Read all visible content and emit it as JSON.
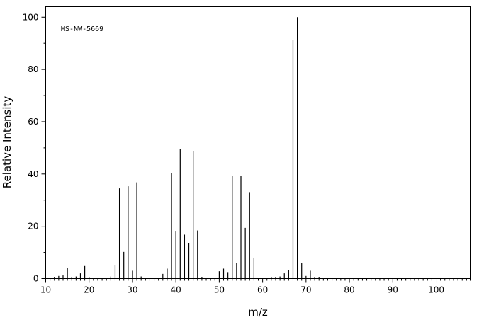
{
  "chart_data": {
    "type": "bar",
    "title": "",
    "annotation": "MS-NW-5669",
    "xlabel": "m/z",
    "ylabel": "Relative Intensity",
    "xlim": [
      10,
      108
    ],
    "ylim": [
      0,
      104
    ],
    "x_major_ticks": [
      10,
      20,
      30,
      40,
      50,
      60,
      70,
      80,
      90,
      100
    ],
    "y_major_ticks": [
      0,
      20,
      40,
      60,
      80,
      100
    ],
    "x_minor_step": 1,
    "y_minor_step": 10,
    "grid": false,
    "peaks": {
      "mz": [
        12,
        13,
        14,
        15,
        16,
        17,
        18,
        19,
        20,
        25,
        26,
        27,
        28,
        29,
        30,
        31,
        32,
        37,
        38,
        39,
        40,
        41,
        42,
        43,
        44,
        45,
        46,
        50,
        51,
        52,
        53,
        54,
        55,
        56,
        57,
        58,
        62,
        63,
        64,
        65,
        66,
        67,
        68,
        69,
        70,
        71,
        72,
        73
      ],
      "intensity": [
        0.6,
        1.0,
        1.2,
        4.0,
        0.6,
        0.8,
        2.0,
        4.8,
        0.4,
        0.8,
        5.0,
        34.5,
        10.2,
        35.3,
        3.0,
        36.8,
        0.8,
        1.8,
        3.8,
        40.4,
        18.0,
        49.6,
        16.8,
        13.6,
        48.6,
        18.4,
        0.6,
        2.8,
        3.8,
        2.2,
        39.4,
        6.0,
        39.4,
        19.4,
        32.8,
        8.0,
        0.6,
        0.6,
        0.8,
        2.0,
        3.2,
        91.2,
        100.0,
        6.0,
        1.0,
        3.0,
        0.6,
        0.4
      ]
    }
  }
}
